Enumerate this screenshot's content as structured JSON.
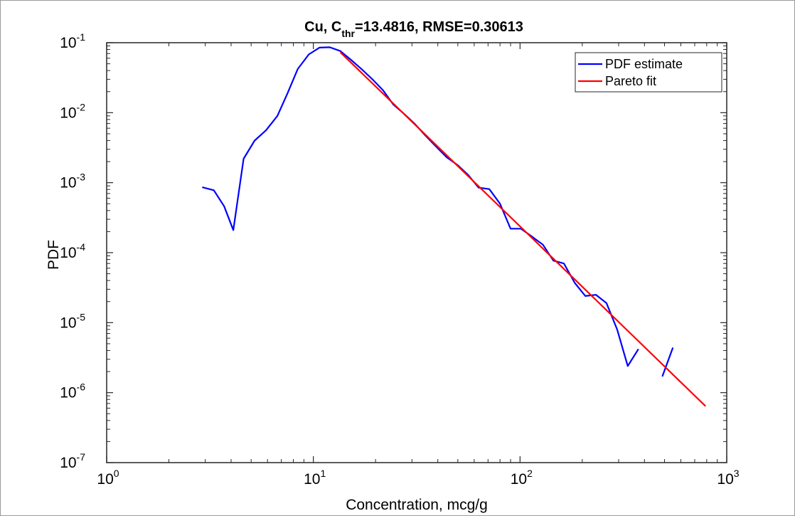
{
  "chart_data": {
    "type": "line",
    "title": {
      "prefix": "Cu, C",
      "subscript": "thr",
      "suffix": "=13.4816, RMSE=0.30613"
    },
    "xlabel": "Concentration, mcg/g",
    "ylabel": "PDF",
    "xscale": "log",
    "yscale": "log",
    "xlim": [
      1,
      1000
    ],
    "ylim": [
      1e-07,
      0.1
    ],
    "grid": false,
    "legend_position": "top-right",
    "x_ticks": [
      {
        "value": 1,
        "base": "10",
        "exp": "0"
      },
      {
        "value": 10,
        "base": "10",
        "exp": "1"
      },
      {
        "value": 100,
        "base": "10",
        "exp": "2"
      },
      {
        "value": 1000,
        "base": "10",
        "exp": "3"
      }
    ],
    "y_ticks": [
      {
        "value": 1e-07,
        "base": "10",
        "exp": "-7"
      },
      {
        "value": 1e-06,
        "base": "10",
        "exp": "-6"
      },
      {
        "value": 1e-05,
        "base": "10",
        "exp": "-5"
      },
      {
        "value": 0.0001,
        "base": "10",
        "exp": "-4"
      },
      {
        "value": 0.001,
        "base": "10",
        "exp": "-3"
      },
      {
        "value": 0.01,
        "base": "10",
        "exp": "-2"
      },
      {
        "value": 0.1,
        "base": "10",
        "exp": "-1"
      }
    ],
    "series": [
      {
        "name": "PDF estimate",
        "color": "#0000ff",
        "segments": [
          [
            [
              2.9,
              0.00086
            ],
            [
              3.3,
              0.00078
            ],
            [
              3.7,
              0.00046
            ],
            [
              4.1,
              0.00021
            ],
            [
              4.6,
              0.0022
            ],
            [
              5.2,
              0.004
            ],
            [
              5.9,
              0.0056
            ],
            [
              6.7,
              0.009
            ],
            [
              7.5,
              0.019
            ],
            [
              8.4,
              0.042
            ],
            [
              9.5,
              0.068
            ],
            [
              10.7,
              0.085
            ],
            [
              12.0,
              0.086
            ],
            [
              13.5,
              0.076
            ],
            [
              15.2,
              0.057
            ],
            [
              17.1,
              0.042
            ],
            [
              19.3,
              0.03
            ],
            [
              21.7,
              0.021
            ],
            [
              24.4,
              0.013
            ],
            [
              27.5,
              0.0096
            ],
            [
              31.0,
              0.0069
            ],
            [
              34.9,
              0.0047
            ],
            [
              39.2,
              0.0033
            ],
            [
              44.2,
              0.0023
            ],
            [
              49.7,
              0.0018
            ],
            [
              56.0,
              0.0013
            ],
            [
              63.0,
              0.00085
            ],
            [
              71.0,
              0.00081
            ],
            [
              80.0,
              0.0005
            ],
            [
              90.0,
              0.00022
            ],
            [
              101.0,
              0.00022
            ],
            [
              114.0,
              0.00017
            ],
            [
              129.0,
              0.00013
            ],
            [
              145.0,
              7.7e-05
            ],
            [
              163.0,
              7e-05
            ],
            [
              184.0,
              3.7e-05
            ],
            [
              207.0,
              2.4e-05
            ],
            [
              233.0,
              2.5e-05
            ],
            [
              262.0,
              1.9e-05
            ],
            [
              295.0,
              8e-06
            ],
            [
              332.0,
              2.4e-06
            ],
            [
              374.0,
              4.2e-06
            ]
          ],
          [
            [
              488.0,
              1.7e-06
            ],
            [
              549.0,
              4.4e-06
            ]
          ]
        ]
      },
      {
        "name": "Pareto fit",
        "color": "#ff0000",
        "segments": [
          [
            [
              13.5,
              0.073
            ],
            [
              790.0,
              6.4e-07
            ]
          ]
        ]
      }
    ]
  }
}
